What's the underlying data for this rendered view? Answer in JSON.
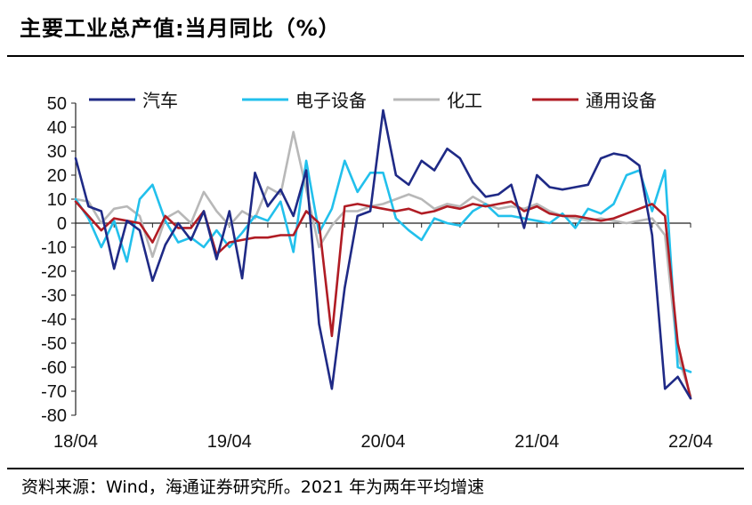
{
  "header": {
    "title": "主要工业总产值:当月同比（%）"
  },
  "footer": {
    "source": "资料来源：Wind，海通证券研究所。2021 年为两年平均增速"
  },
  "chart_data": {
    "type": "line",
    "title": "主要工业总产值:当月同比（%）",
    "xlabel": "",
    "ylabel": "",
    "ylim": [
      -80,
      50
    ],
    "yticks": [
      50,
      40,
      30,
      20,
      10,
      0,
      -10,
      -20,
      -30,
      -40,
      -50,
      -60,
      -70,
      -80
    ],
    "xtick_labels": [
      {
        "label": "18/04",
        "index": 0
      },
      {
        "label": "19/04",
        "index": 12
      },
      {
        "label": "20/04",
        "index": 24
      },
      {
        "label": "21/04",
        "index": 36
      },
      {
        "label": "22/04",
        "index": 48
      }
    ],
    "x": [
      "18/04",
      "18/05",
      "18/06",
      "18/07",
      "18/08",
      "18/09",
      "18/10",
      "18/11",
      "18/12",
      "19/01",
      "19/02",
      "19/03",
      "19/04",
      "19/05",
      "19/06",
      "19/07",
      "19/08",
      "19/09",
      "19/10",
      "19/11",
      "19/12",
      "20/01",
      "20/02",
      "20/03",
      "20/04",
      "20/05",
      "20/06",
      "20/07",
      "20/08",
      "20/09",
      "20/10",
      "20/11",
      "20/12",
      "21/01",
      "21/02",
      "21/03",
      "21/04",
      "21/05",
      "21/06",
      "21/07",
      "21/08",
      "21/09",
      "21/10",
      "21/11",
      "21/12",
      "22/01",
      "22/02",
      "22/03",
      "22/04"
    ],
    "series": [
      {
        "name": "汽车",
        "color": "#1f2a86",
        "values": [
          27,
          7,
          5,
          -19,
          1,
          -3,
          -24,
          -9,
          0,
          -7,
          5,
          -15,
          5,
          -23,
          21,
          7,
          14,
          3,
          22,
          -42,
          -69,
          -27,
          3,
          5,
          47,
          20,
          16,
          26,
          22,
          31,
          27,
          17,
          11,
          12,
          16,
          -2,
          20,
          15,
          14,
          15,
          16,
          27,
          29,
          28,
          24,
          -5,
          -69,
          -64,
          -73
        ]
      },
      {
        "name": "电子设备",
        "color": "#22c0ec",
        "values": [
          10,
          2,
          -10,
          1,
          -16,
          10,
          16,
          1,
          -8,
          -6,
          -10,
          -3,
          -10,
          -4,
          3,
          1,
          9,
          -12,
          26,
          -4,
          6,
          26,
          13,
          21,
          21,
          2,
          -3,
          -7,
          2,
          0,
          -1,
          5,
          8,
          3,
          3,
          2,
          1,
          0,
          4,
          -2,
          6,
          4,
          8,
          20,
          22,
          5,
          22,
          -60,
          -62
        ]
      },
      {
        "name": "化工",
        "color": "#b8b8b8",
        "values": [
          10,
          9,
          0,
          6,
          7,
          3,
          -14,
          2,
          5,
          0,
          13,
          5,
          -1,
          5,
          2,
          15,
          12,
          38,
          14,
          -10,
          -1,
          5,
          5,
          7,
          8,
          10,
          12,
          10,
          6,
          8,
          7,
          11,
          8,
          6,
          7,
          6,
          8,
          5,
          3,
          2,
          1,
          2,
          1,
          0,
          1,
          2,
          -5,
          -55,
          -72
        ]
      },
      {
        "name": "通用设备",
        "color": "#b01c24",
        "values": [
          9,
          3,
          -3,
          2,
          1,
          0,
          -8,
          3,
          -2,
          -2,
          5,
          -13,
          -8,
          -7,
          -6,
          -6,
          -5,
          -5,
          5,
          0,
          -47,
          7,
          8,
          7,
          6,
          5,
          6,
          4,
          5,
          7,
          6,
          8,
          7,
          8,
          9,
          5,
          7,
          4,
          3,
          3,
          2,
          1,
          2,
          4,
          6,
          8,
          3,
          -50,
          -73
        ]
      }
    ]
  }
}
